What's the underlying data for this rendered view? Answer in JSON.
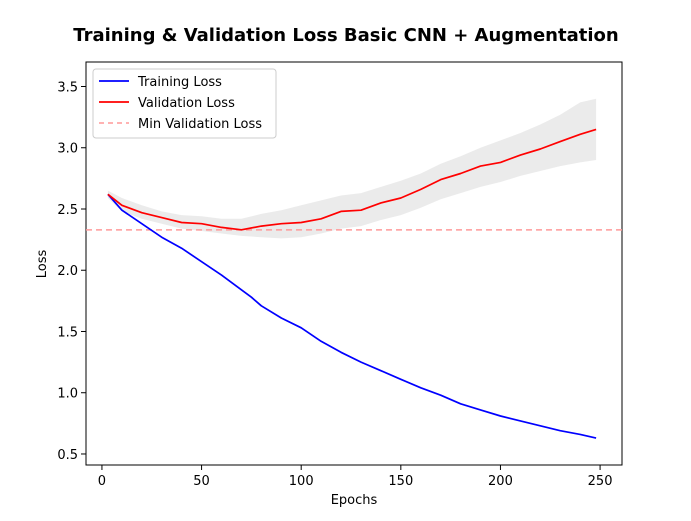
{
  "chart_data": {
    "type": "line",
    "title": "Training & Validation Loss Basic CNN + Augmentation",
    "xlabel": "Epochs",
    "ylabel": "Loss",
    "xlim": [
      -8,
      261
    ],
    "ylim": [
      0.41,
      3.7
    ],
    "xticks": [
      0,
      50,
      100,
      150,
      200,
      250
    ],
    "yticks": [
      0.5,
      1.0,
      1.5,
      2.0,
      2.5,
      3.0,
      3.5
    ],
    "xtick_labels": [
      "0",
      "50",
      "100",
      "150",
      "200",
      "250"
    ],
    "ytick_labels": [
      "0.5",
      "1.0",
      "1.5",
      "2.0",
      "2.5",
      "3.0",
      "3.5"
    ],
    "legend_position": "upper-left",
    "grid": false,
    "min_validation_loss": 2.33,
    "series": [
      {
        "name": "Training Loss",
        "color": "#0000ff",
        "style": "solid",
        "x": [
          3,
          10,
          20,
          30,
          40,
          50,
          60,
          70,
          75,
          80,
          90,
          100,
          110,
          120,
          130,
          140,
          150,
          160,
          170,
          180,
          190,
          200,
          210,
          220,
          230,
          240,
          248
        ],
        "y": [
          2.62,
          2.49,
          2.38,
          2.27,
          2.18,
          2.07,
          1.96,
          1.84,
          1.78,
          1.71,
          1.61,
          1.53,
          1.42,
          1.33,
          1.25,
          1.18,
          1.11,
          1.04,
          0.98,
          0.91,
          0.86,
          0.81,
          0.77,
          0.73,
          0.69,
          0.66,
          0.63
        ]
      },
      {
        "name": "Validation Loss",
        "color": "#ff0000",
        "style": "solid",
        "x": [
          3,
          10,
          20,
          30,
          40,
          50,
          60,
          70,
          80,
          90,
          100,
          110,
          120,
          130,
          140,
          150,
          160,
          170,
          180,
          190,
          200,
          210,
          220,
          230,
          240,
          248
        ],
        "y": [
          2.62,
          2.53,
          2.47,
          2.43,
          2.39,
          2.38,
          2.35,
          2.33,
          2.36,
          2.38,
          2.39,
          2.42,
          2.48,
          2.49,
          2.55,
          2.59,
          2.66,
          2.74,
          2.79,
          2.85,
          2.88,
          2.94,
          2.99,
          3.05,
          3.11,
          3.15
        ]
      },
      {
        "name": "Min Validation Loss",
        "color": "#ff9999",
        "style": "dashed",
        "y_constant": 2.33
      }
    ],
    "validation_band": {
      "color": "#d3d3d3",
      "x": [
        3,
        10,
        20,
        30,
        40,
        50,
        60,
        70,
        80,
        90,
        100,
        110,
        120,
        130,
        140,
        150,
        160,
        170,
        180,
        190,
        200,
        210,
        220,
        230,
        240,
        248
      ],
      "upper": [
        2.65,
        2.59,
        2.53,
        2.48,
        2.45,
        2.44,
        2.42,
        2.42,
        2.46,
        2.49,
        2.53,
        2.57,
        2.61,
        2.63,
        2.68,
        2.73,
        2.79,
        2.87,
        2.93,
        3.0,
        3.06,
        3.12,
        3.19,
        3.27,
        3.37,
        3.4
      ],
      "lower": [
        2.59,
        2.48,
        2.42,
        2.38,
        2.34,
        2.32,
        2.3,
        2.28,
        2.27,
        2.26,
        2.27,
        2.3,
        2.34,
        2.36,
        2.41,
        2.45,
        2.51,
        2.58,
        2.63,
        2.68,
        2.72,
        2.77,
        2.81,
        2.85,
        2.88,
        2.9
      ]
    }
  }
}
